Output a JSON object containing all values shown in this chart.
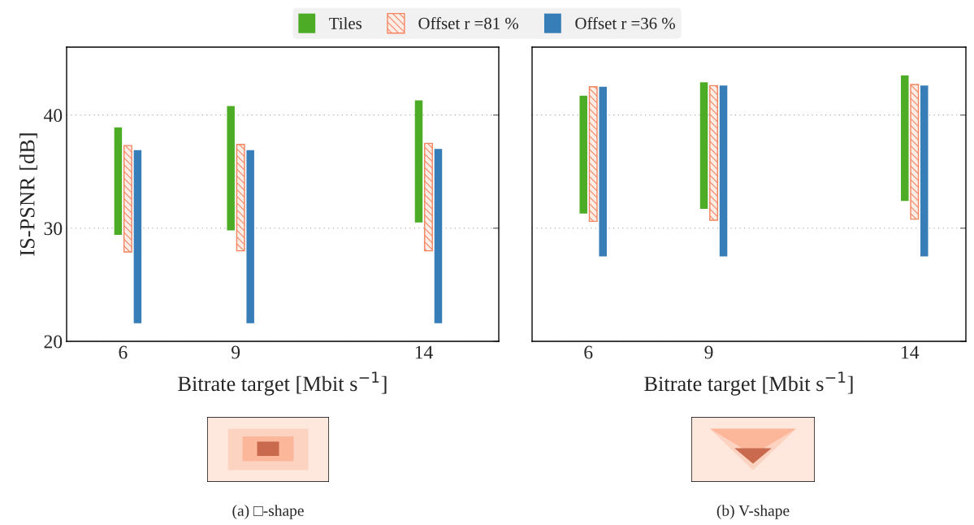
{
  "chart_data": [
    {
      "type": "bar",
      "xlabel": "Bitrate target [Mbit s$^{−1}$]",
      "ylabel": "IS-PSNR [dB]",
      "x": [
        6,
        9,
        14
      ],
      "xlim": [
        4.5,
        16
      ],
      "xticks": [
        6,
        9,
        14
      ],
      "ylim": [
        20,
        46
      ],
      "yticks": [
        20,
        30,
        40
      ],
      "grid": "y",
      "legend": "top",
      "annotations": [
        "(a) □-shape"
      ],
      "series": [
        {
          "name": "Tiles",
          "color": "#4dac26",
          "base": [
            29.4,
            29.8,
            30.5
          ],
          "values": [
            9.5,
            11.0,
            10.8
          ]
        },
        {
          "name": "Offset r =81 %",
          "color": "#f4845f",
          "base": [
            27.9,
            28.0,
            28.0
          ],
          "values": [
            9.4,
            9.4,
            9.5
          ]
        },
        {
          "name": "Offset r =36 %",
          "color": "#377eb8",
          "base": [
            21.6,
            21.6,
            21.6
          ],
          "values": [
            15.3,
            15.3,
            15.4
          ]
        }
      ]
    },
    {
      "type": "bar",
      "xlabel": "Bitrate target [Mbit s$^{−1}$]",
      "x": [
        6,
        9,
        14
      ],
      "xlim": [
        4.6,
        15.4
      ],
      "xticks": [
        6,
        9,
        14
      ],
      "ylim": [
        20,
        46
      ],
      "yticks": [
        20,
        30,
        40
      ],
      "grid": "y",
      "tick_labels": "x",
      "annotations": [
        "(b) V-shape"
      ],
      "series": [
        {
          "color": "#4dac26",
          "base": [
            31.3,
            31.7,
            32.4
          ],
          "values": [
            10.4,
            11.2,
            11.1
          ]
        },
        {
          "color": "#f4845f",
          "base": [
            30.6,
            30.7,
            30.8
          ],
          "values": [
            11.9,
            11.9,
            11.9
          ]
        },
        {
          "color": "#377eb8",
          "base": [
            27.5,
            27.5,
            27.5
          ],
          "values": [
            15.0,
            15.1,
            15.1
          ]
        }
      ]
    }
  ]
}
